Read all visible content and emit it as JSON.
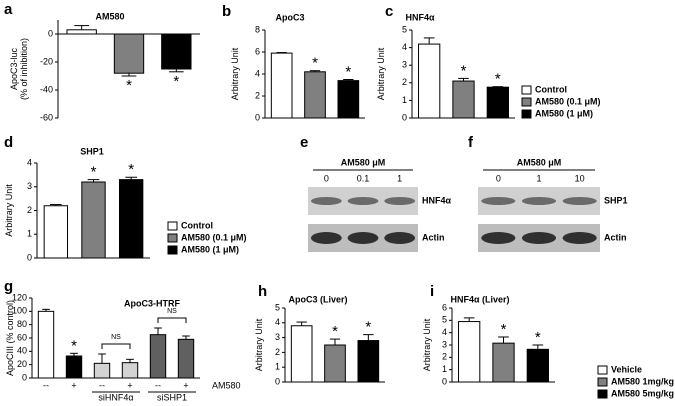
{
  "chart_data": [
    {
      "type": "bar",
      "label": "a",
      "title": "AM580",
      "ylabel": "ApoC3-luc\n(% of inhibition)",
      "categories": [
        null,
        null,
        null
      ],
      "values": [
        3,
        -28,
        -25
      ],
      "errors": [
        3,
        2,
        2
      ],
      "colors": [
        "#ffffff",
        "#808080",
        "#000000"
      ],
      "significance": [
        null,
        "*",
        "*"
      ],
      "ylim": [
        -60,
        10
      ],
      "yticks": [
        0,
        -20,
        -40,
        -60
      ]
    },
    {
      "type": "bar",
      "label": "b",
      "title": "ApoC3",
      "ylabel": "Arbitrary Unit",
      "categories": [
        null,
        null,
        null
      ],
      "values": [
        5.9,
        4.2,
        3.4
      ],
      "errors": [
        0.05,
        0.1,
        0.1
      ],
      "colors": [
        "#ffffff",
        "#808080",
        "#000000"
      ],
      "significance": [
        null,
        "*",
        "*"
      ],
      "ylim": [
        0,
        8
      ],
      "yticks": [
        0,
        2,
        4,
        6,
        8
      ]
    },
    {
      "type": "bar",
      "label": "c",
      "title": "HNF4α",
      "ylabel": "Arbitrary Unit",
      "categories": [
        null,
        null,
        null
      ],
      "values": [
        4.2,
        2.1,
        1.75
      ],
      "errors": [
        0.35,
        0.15,
        0.03
      ],
      "colors": [
        "#ffffff",
        "#808080",
        "#000000"
      ],
      "significance": [
        null,
        "*",
        "*"
      ],
      "ylim": [
        0,
        5
      ],
      "yticks": [
        0,
        1,
        2,
        3,
        4,
        5
      ],
      "legend": {
        "labels": [
          "Control",
          "AM580 (0.1 μM)",
          "AM580 (1 μM)"
        ],
        "colors": [
          "#ffffff",
          "#808080",
          "#000000"
        ]
      }
    },
    {
      "type": "bar",
      "label": "d",
      "title": "SHP1",
      "ylabel": "Arbitrary Unit",
      "categories": [
        null,
        null,
        null
      ],
      "values": [
        2.2,
        3.2,
        3.3
      ],
      "errors": [
        0.05,
        0.1,
        0.1
      ],
      "colors": [
        "#ffffff",
        "#808080",
        "#000000"
      ],
      "significance": [
        null,
        "*",
        "*"
      ],
      "ylim": [
        0,
        4
      ],
      "yticks": [
        0,
        1,
        2,
        3,
        4
      ],
      "legend": {
        "labels": [
          "Control",
          "AM580 (0.1 μM)",
          "AM580 (1 μM)"
        ],
        "colors": [
          "#ffffff",
          "#808080",
          "#000000"
        ]
      }
    },
    {
      "type": "bar",
      "label": "g",
      "title": "ApoC3-HTRF",
      "ylabel": "ApoCIII (% control)",
      "categories": [
        "--",
        "+",
        "--",
        "+",
        "--",
        "+"
      ],
      "values": [
        100,
        33,
        22,
        23,
        65,
        58
      ],
      "errors": [
        3,
        4,
        14,
        5,
        10,
        5
      ],
      "colors": [
        "#ffffff",
        "#000000",
        "#d3d3d3",
        "#d3d3d3",
        "#606060",
        "#606060"
      ],
      "significance": [
        null,
        "*",
        null,
        null,
        null,
        null
      ],
      "x_extra_label": "AM580",
      "group_labels": [
        null,
        "siHNF4α",
        "siSHP1"
      ],
      "group_brackets": [
        null,
        "NS",
        "NS"
      ],
      "ylim": [
        0,
        120
      ],
      "yticks": [
        0,
        20,
        40,
        60,
        80,
        100,
        120
      ]
    },
    {
      "type": "bar",
      "label": "h",
      "title": "ApoC3 (Liver)",
      "ylabel": "Arbitrary Unit",
      "categories": [
        null,
        null,
        null
      ],
      "values": [
        3.8,
        2.5,
        2.8
      ],
      "errors": [
        0.25,
        0.4,
        0.4
      ],
      "colors": [
        "#ffffff",
        "#808080",
        "#000000"
      ],
      "significance": [
        null,
        "*",
        "*"
      ],
      "ylim": [
        0,
        5
      ],
      "yticks": [
        0,
        1,
        2,
        3,
        4,
        5
      ]
    },
    {
      "type": "bar",
      "label": "i",
      "title": "HNF4α (Liver)",
      "ylabel": "Arbitrary Unit",
      "categories": [
        null,
        null,
        null
      ],
      "values": [
        4.9,
        3.15,
        2.65
      ],
      "errors": [
        0.3,
        0.5,
        0.35
      ],
      "colors": [
        "#ffffff",
        "#808080",
        "#000000"
      ],
      "significance": [
        null,
        "*",
        "*"
      ],
      "ylim": [
        0,
        6
      ],
      "yticks": [
        0,
        1,
        2,
        3,
        4,
        5,
        6
      ],
      "legend": {
        "labels": [
          "Vehicle",
          "AM580 1mg/kg",
          "AM580 5mg/kg"
        ],
        "colors": [
          "#ffffff",
          "#808080",
          "#000000"
        ]
      }
    }
  ],
  "blots": [
    {
      "label": "e",
      "header": "AM580 μM",
      "lanes": [
        "0",
        "0.1",
        "1"
      ],
      "bands": [
        "HNF4α",
        "Actin"
      ]
    },
    {
      "label": "f",
      "header": "AM580 μM",
      "lanes": [
        "0",
        "1",
        "10"
      ],
      "bands": [
        "SHP1",
        "Actin"
      ]
    }
  ]
}
